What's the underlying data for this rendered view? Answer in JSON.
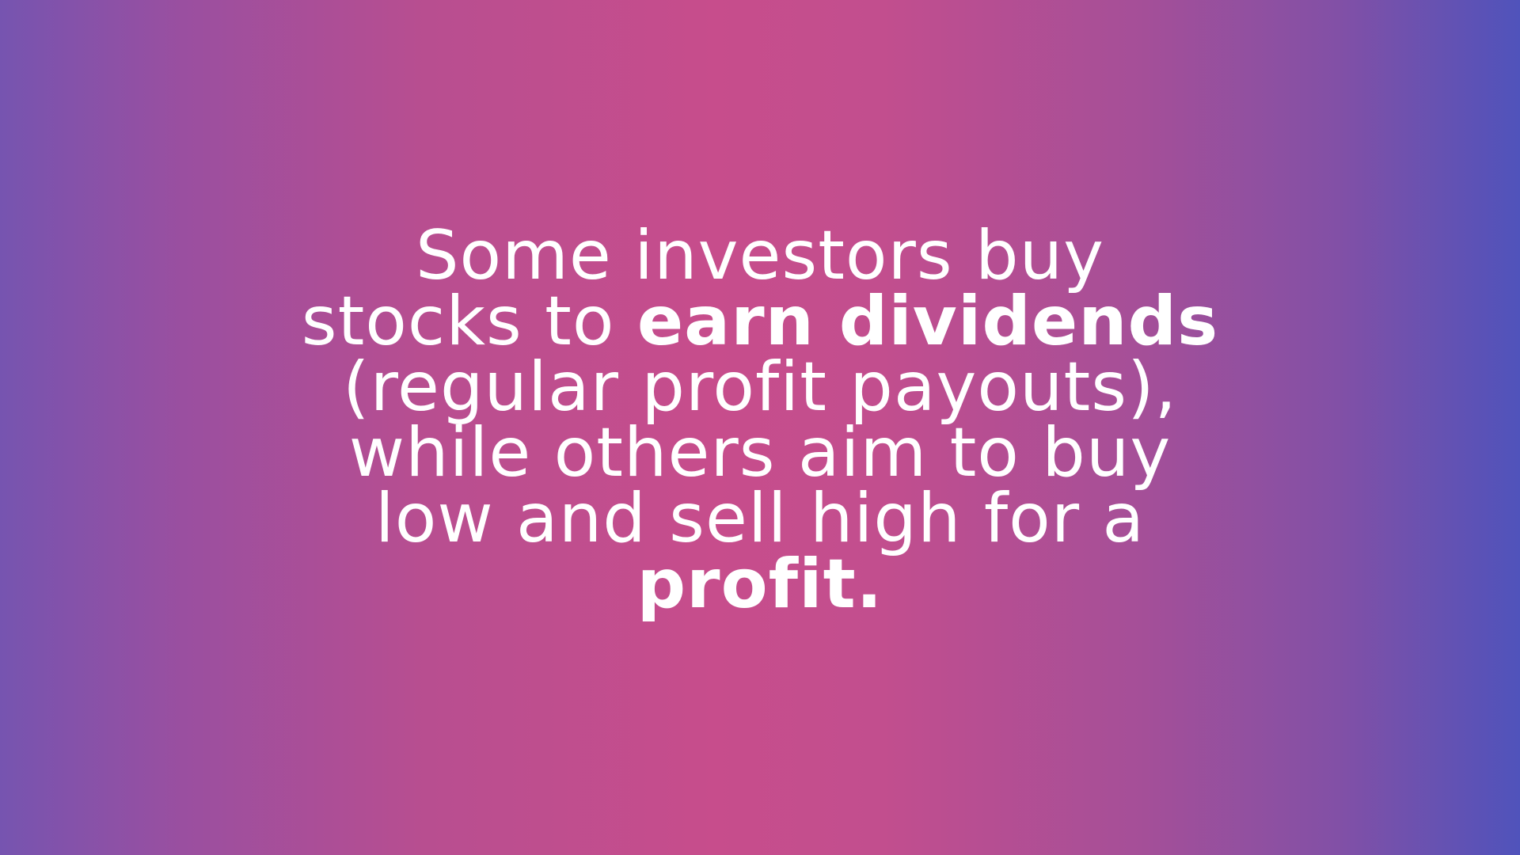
{
  "slide": {
    "background_colors": [
      "#7654b0",
      "#c74d8c",
      "#5053bb"
    ],
    "text_color": "#ffffff",
    "lines": [
      {
        "segments": [
          {
            "text": "Some investors buy",
            "bold": false
          }
        ]
      },
      {
        "segments": [
          {
            "text": "stocks to ",
            "bold": false
          },
          {
            "text": "earn dividends",
            "bold": true
          }
        ]
      },
      {
        "segments": [
          {
            "text": "(regular profit payouts),",
            "bold": false
          }
        ]
      },
      {
        "segments": [
          {
            "text": "while others aim to buy",
            "bold": false
          }
        ]
      },
      {
        "segments": [
          {
            "text": "low and sell high for a",
            "bold": false
          }
        ]
      },
      {
        "segments": [
          {
            "text": "profit.",
            "bold": true
          }
        ]
      }
    ]
  }
}
